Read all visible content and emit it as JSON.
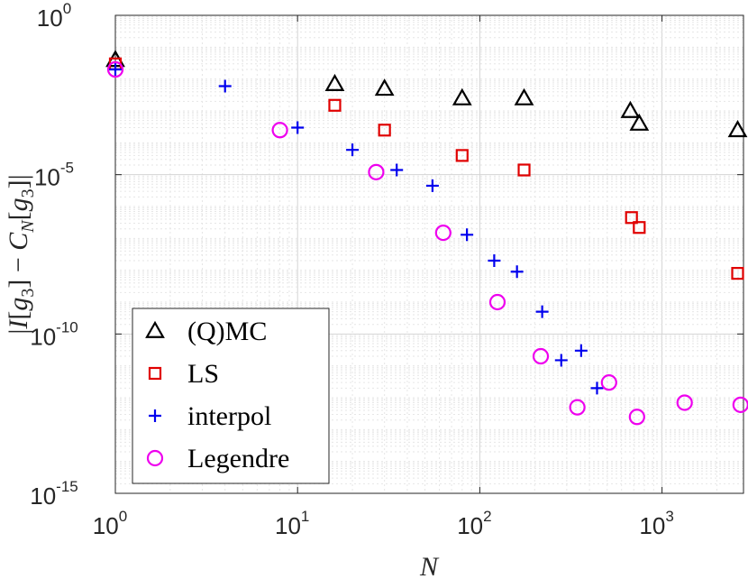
{
  "chart_data": {
    "type": "scatter",
    "title": "",
    "xlabel": "N",
    "ylabel": "|I[g3] − CN[g3]|",
    "ylabel_parts": [
      "|",
      "I",
      "[",
      "g",
      "3",
      "] − ",
      "C",
      "N",
      "[",
      "g",
      "3",
      "]",
      "|"
    ],
    "xscale": "log",
    "yscale": "log",
    "xlim": [
      1,
      2800
    ],
    "ylim": [
      1e-15,
      1
    ],
    "grid": true,
    "legend_position": "bottom-left",
    "x_ticks": [
      {
        "value": 1,
        "base": "10",
        "exp": "0"
      },
      {
        "value": 10,
        "base": "10",
        "exp": "1"
      },
      {
        "value": 100,
        "base": "10",
        "exp": "2"
      },
      {
        "value": 1000,
        "base": "10",
        "exp": "3"
      }
    ],
    "y_ticks": [
      {
        "value": 1,
        "base": "10",
        "exp": "0"
      },
      {
        "value": 1e-05,
        "base": "10",
        "exp": "-5"
      },
      {
        "value": 1e-10,
        "base": "10",
        "exp": "-10"
      },
      {
        "value": 1e-15,
        "base": "10",
        "exp": "-15"
      }
    ],
    "series": [
      {
        "name": "(Q)MC",
        "marker": "triangle",
        "color": "#000000",
        "points": [
          {
            "x": 1,
            "y": 0.04
          },
          {
            "x": 16,
            "y": 0.007
          },
          {
            "x": 30,
            "y": 0.005
          },
          {
            "x": 80,
            "y": 0.0025
          },
          {
            "x": 175,
            "y": 0.0025
          },
          {
            "x": 670,
            "y": 0.001
          },
          {
            "x": 750,
            "y": 0.0004
          },
          {
            "x": 2600,
            "y": 0.00025
          }
        ]
      },
      {
        "name": "LS",
        "marker": "square",
        "color": "#e00000",
        "points": [
          {
            "x": 1,
            "y": 0.03
          },
          {
            "x": 16,
            "y": 0.0015
          },
          {
            "x": 30,
            "y": 0.00025
          },
          {
            "x": 80,
            "y": 4e-05
          },
          {
            "x": 175,
            "y": 1.4e-05
          },
          {
            "x": 680,
            "y": 4.5e-07
          },
          {
            "x": 750,
            "y": 2.2e-07
          },
          {
            "x": 2600,
            "y": 8e-09
          }
        ]
      },
      {
        "name": "interpol",
        "marker": "plus",
        "color": "#0000ee",
        "points": [
          {
            "x": 1,
            "y": 0.02
          },
          {
            "x": 4,
            "y": 0.006
          },
          {
            "x": 10,
            "y": 0.0003
          },
          {
            "x": 20,
            "y": 6e-05
          },
          {
            "x": 35,
            "y": 1.4e-05
          },
          {
            "x": 55,
            "y": 4.5e-06
          },
          {
            "x": 85,
            "y": 1.3e-07
          },
          {
            "x": 120,
            "y": 2e-08
          },
          {
            "x": 160,
            "y": 9e-09
          },
          {
            "x": 220,
            "y": 5e-10
          },
          {
            "x": 280,
            "y": 1.5e-11
          },
          {
            "x": 360,
            "y": 3e-11
          },
          {
            "x": 440,
            "y": 2e-12
          }
        ]
      },
      {
        "name": "Legendre",
        "marker": "circle",
        "color": "#ee00ee",
        "points": [
          {
            "x": 1,
            "y": 0.02
          },
          {
            "x": 8,
            "y": 0.00025
          },
          {
            "x": 27,
            "y": 1.2e-05
          },
          {
            "x": 63,
            "y": 1.5e-07
          },
          {
            "x": 125,
            "y": 1e-09
          },
          {
            "x": 216,
            "y": 2e-11
          },
          {
            "x": 343,
            "y": 5e-13
          },
          {
            "x": 512,
            "y": 3e-12
          },
          {
            "x": 729,
            "y": 2.5e-13
          },
          {
            "x": 1331,
            "y": 7e-13
          },
          {
            "x": 2700,
            "y": 6e-13
          }
        ]
      }
    ]
  }
}
